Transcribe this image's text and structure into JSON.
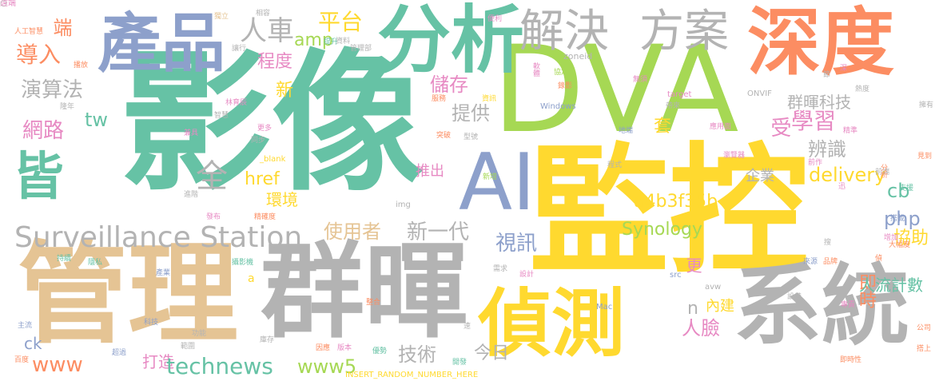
{
  "palette": {
    "green": "#66c2a5",
    "orange": "#fc8d62",
    "blue": "#8da0cb",
    "pink": "#e78ac3",
    "lime": "#a6d854",
    "yellow": "#ffd92f",
    "tan": "#e5c494",
    "gray": "#b3b3b3"
  },
  "words": [
    {
      "text": "影像",
      "color": "green",
      "bold": true
    },
    {
      "text": "監控",
      "color": "yellow",
      "bold": true
    },
    {
      "text": "DVA",
      "color": "lime"
    },
    {
      "text": "管理",
      "color": "tan",
      "bold": true
    },
    {
      "text": "群暉",
      "color": "gray",
      "bold": true
    },
    {
      "text": "系統",
      "color": "gray",
      "bold": true
    },
    {
      "text": "偵測",
      "color": "yellow",
      "bold": true
    },
    {
      "text": "深度",
      "color": "orange",
      "bold": true
    },
    {
      "text": "分析",
      "color": "green",
      "bold": true
    },
    {
      "text": "產品",
      "color": "blue",
      "bold": true
    },
    {
      "text": "AI",
      "color": "blue"
    },
    {
      "text": "皆",
      "color": "green",
      "bold": true
    },
    {
      "text": "解決",
      "color": "gray"
    },
    {
      "text": "方案",
      "color": "gray"
    },
    {
      "text": "Surveillance Station",
      "color": "gray"
    },
    {
      "text": "人車",
      "color": "gray"
    },
    {
      "text": "amp",
      "color": "lime"
    },
    {
      "text": "平台",
      "color": "yellow"
    },
    {
      "text": "端",
      "color": "orange"
    },
    {
      "text": "導入",
      "color": "orange"
    },
    {
      "text": "演算法",
      "color": "gray"
    },
    {
      "text": "程度",
      "color": "pink"
    },
    {
      "text": "新",
      "color": "yellow"
    },
    {
      "text": "儲存",
      "color": "pink"
    },
    {
      "text": "tw",
      "color": "green"
    },
    {
      "text": "提供",
      "color": "gray"
    },
    {
      "text": "網路",
      "color": "pink"
    },
    {
      "text": "學習",
      "color": "pink"
    },
    {
      "text": "受",
      "color": "pink"
    },
    {
      "text": "套",
      "color": "yellow"
    },
    {
      "text": "群暉科技",
      "color": "gray"
    },
    {
      "text": "辨識",
      "color": "gray"
    },
    {
      "text": "delivery",
      "color": "yellow"
    },
    {
      "text": "企業",
      "color": "gray"
    },
    {
      "text": "href",
      "color": "yellow"
    },
    {
      "text": "推出",
      "color": "pink"
    },
    {
      "text": "環境",
      "color": "yellow"
    },
    {
      "text": "a4b3f35b",
      "color": "yellow"
    },
    {
      "text": "cb",
      "color": "green"
    },
    {
      "text": "使用者",
      "color": "tan"
    },
    {
      "text": "新一代",
      "color": "gray"
    },
    {
      "text": "php",
      "color": "blue"
    },
    {
      "text": "Synology",
      "color": "lime"
    },
    {
      "text": "協助",
      "color": "yellow"
    },
    {
      "text": "視訊",
      "color": "blue"
    },
    {
      "text": "即時",
      "color": "orange"
    },
    {
      "text": "更",
      "color": "pink"
    },
    {
      "text": "人流計數",
      "color": "green"
    },
    {
      "text": "n",
      "color": "gray"
    },
    {
      "text": "內建",
      "color": "yellow"
    },
    {
      "text": "人臉",
      "color": "pink"
    },
    {
      "text": "技術",
      "color": "gray"
    },
    {
      "text": "ck",
      "color": "blue"
    },
    {
      "text": "www",
      "color": "orange"
    },
    {
      "text": "打造",
      "color": "pink"
    },
    {
      "text": "technews",
      "color": "green"
    },
    {
      "text": "www5",
      "color": "lime"
    },
    {
      "text": "今日",
      "color": "gray"
    },
    {
      "text": "_blank",
      "color": "yellow"
    },
    {
      "text": "Windows",
      "color": "blue"
    },
    {
      "text": "Mac",
      "color": "blue"
    },
    {
      "text": "INSERT_RANDOM_NUMBER_HERE",
      "color": "yellow"
    },
    {
      "text": "zoneid",
      "color": "gray"
    },
    {
      "text": "ONVIF",
      "color": "gray"
    },
    {
      "text": "target",
      "color": "pink"
    },
    {
      "text": "img",
      "color": "gray"
    },
    {
      "text": "src",
      "color": "blue"
    },
    {
      "text": "avw",
      "color": "gray"
    },
    {
      "text": "a",
      "color": "yellow"
    },
    {
      "text": "人工智慧",
      "color": "orange"
    },
    {
      "text": "播放",
      "color": "orange"
    },
    {
      "text": "獨立",
      "color": "tan"
    },
    {
      "text": "提升",
      "color": "green"
    },
    {
      "text": "便利",
      "color": "pink"
    },
    {
      "text": "錄影",
      "color": "orange"
    },
    {
      "text": "軟體",
      "color": "pink"
    },
    {
      "text": "協定",
      "color": "lime"
    },
    {
      "text": "無須",
      "color": "pink"
    },
    {
      "text": "資訊",
      "color": "yellow"
    },
    {
      "text": "應用面",
      "color": "pink"
    },
    {
      "text": "瀏覽器",
      "color": "pink"
    },
    {
      "text": "精確度",
      "color": "orange"
    },
    {
      "text": "熱度",
      "color": "gray"
    },
    {
      "text": "大幅度",
      "color": "orange"
    },
    {
      "text": "主流",
      "color": "blue"
    },
    {
      "text": "百度",
      "color": "orange"
    },
    {
      "text": "科技",
      "color": "blue"
    },
    {
      "text": "功能",
      "color": "gray"
    },
    {
      "text": "因應",
      "color": "orange"
    },
    {
      "text": "版本",
      "color": "pink"
    },
    {
      "text": "優勢",
      "color": "green"
    },
    {
      "text": "即時性",
      "color": "orange"
    },
    {
      "text": "公司",
      "color": "orange"
    },
    {
      "text": "搭上",
      "color": "orange"
    },
    {
      "text": "林育辰",
      "color": "pink"
    },
    {
      "text": "同步",
      "color": "gray"
    },
    {
      "text": "更多",
      "color": "pink"
    },
    {
      "text": "突破",
      "color": "orange"
    },
    {
      "text": "型號",
      "color": "gray"
    },
    {
      "text": "程式",
      "color": "gray"
    },
    {
      "text": "新增",
      "color": "lime"
    },
    {
      "text": "帶來",
      "color": "gray"
    },
    {
      "text": "見到",
      "color": "orange"
    },
    {
      "text": "前端",
      "color": "gray"
    },
    {
      "text": "分析",
      "color": "orange"
    },
    {
      "text": "支援",
      "color": "green"
    },
    {
      "text": "搭載",
      "color": "blue"
    },
    {
      "text": "增加",
      "color": "pink"
    },
    {
      "text": "來源",
      "color": "blue"
    },
    {
      "text": "品牌",
      "color": "orange"
    },
    {
      "text": "需求",
      "color": "gray"
    },
    {
      "text": "設計",
      "color": "pink"
    },
    {
      "text": "整合",
      "color": "orange"
    },
    {
      "text": "專責",
      "color": "pink"
    },
    {
      "text": "設備",
      "color": "gray"
    },
    {
      "text": "隱私",
      "color": "green"
    },
    {
      "text": "持續",
      "color": "green"
    },
    {
      "text": "攝影機",
      "color": "green"
    },
    {
      "text": "發布",
      "color": "pink"
    },
    {
      "text": "產業",
      "color": "blue"
    },
    {
      "text": "範圍",
      "color": "gray"
    },
    {
      "text": "超過",
      "color": "blue"
    },
    {
      "text": "地端",
      "color": "blue"
    },
    {
      "text": "資料",
      "color": "gray"
    },
    {
      "text": "管理部",
      "color": "gray"
    },
    {
      "text": "智慧",
      "color": "gray"
    },
    {
      "text": "兼具",
      "color": "pink"
    },
    {
      "text": "隆年",
      "color": "gray"
    },
    {
      "text": "讓行",
      "color": "gray"
    },
    {
      "text": "相容",
      "color": "gray"
    },
    {
      "text": "進階",
      "color": "gray"
    },
    {
      "text": "庫存",
      "color": "gray"
    },
    {
      "text": "服務",
      "color": "orange"
    },
    {
      "text": "前作",
      "color": "pink"
    },
    {
      "text": "迅",
      "color": "pink"
    },
    {
      "text": "擁有",
      "color": "gray"
    },
    {
      "text": "節",
      "color": "gray"
    },
    {
      "text": "搜",
      "color": "gray"
    },
    {
      "text": "開發",
      "color": "green"
    },
    {
      "text": "速",
      "color": "gray"
    },
    {
      "text": "深",
      "color": "pink"
    },
    {
      "text": "精準",
      "color": "pink"
    },
    {
      "text": "偵",
      "color": "orange"
    },
    {
      "text": "全",
      "color": "gray"
    },
    {
      "text": "遠端",
      "color": "pink"
    },
    {
      "text": "○",
      "color": "gray"
    }
  ]
}
